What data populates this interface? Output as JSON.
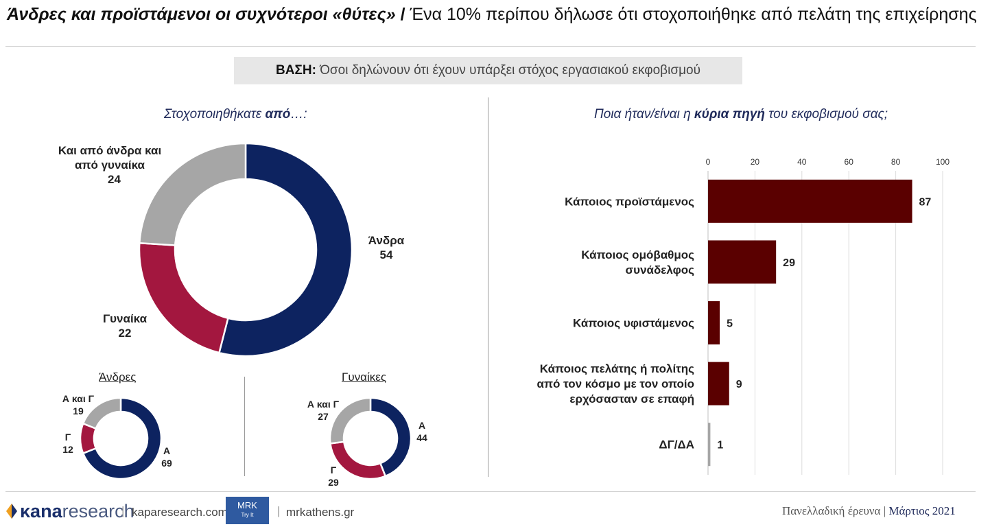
{
  "header": {
    "title_emphasis": "Άνδρες και προϊστάμενοι οι συχνότεροι «θύτες»",
    "title_separator": " / ",
    "title_rest": "Ένα 10% περίπου δήλωσε ότι στοχοποιήθηκε από πελάτη της επιχείρησης",
    "basis_label": "ΒΑΣΗ:",
    "basis_text": " Όσοι δηλώνουν ότι έχουν υπάρξει στόχος εργασιακού εκφοβισμού"
  },
  "left_panel": {
    "question_prefix": "Στοχοποιηθήκατε ",
    "question_emphasis": "από",
    "question_suffix": "…:",
    "men_title": "Άνδρες",
    "women_title": "Γυναίκες"
  },
  "right_panel": {
    "question_prefix": "Ποια ήταν/είναι η ",
    "question_emphasis": "κύρια πηγή",
    "question_suffix": " του εκφοβισμού σας;"
  },
  "chart_data": [
    {
      "type": "pie",
      "variant": "donut",
      "labels": [
        "Άνδρα",
        "Γυναίκα",
        "Και από άνδρα και από γυναίκα"
      ],
      "display_labels": [
        [
          "Άνδρα"
        ],
        [
          "Γυναίκα"
        ],
        [
          "Και από άνδρα και",
          "από γυναίκα"
        ]
      ],
      "values": [
        54,
        22,
        24
      ],
      "colors": [
        "#0d2360",
        "#a3173f",
        "#a6a6a6"
      ]
    },
    {
      "type": "pie",
      "variant": "donut",
      "labels": [
        "Α",
        "Γ",
        "Α και Γ"
      ],
      "values": [
        69,
        12,
        19
      ],
      "colors": [
        "#0d2360",
        "#a3173f",
        "#a6a6a6"
      ]
    },
    {
      "type": "pie",
      "variant": "donut",
      "labels": [
        "Α",
        "Γ",
        "Α και Γ"
      ],
      "values": [
        44,
        29,
        27
      ],
      "colors": [
        "#0d2360",
        "#a3173f",
        "#a6a6a6"
      ]
    },
    {
      "type": "bar",
      "orientation": "horizontal",
      "categories": [
        "Κάποιος προϊστάμενος",
        "Κάποιος ομόβαθμος συνάδελφος",
        "Κάποιος υφιστάμενος",
        "Κάποιος πελάτης ή πολίτης από τον κόσμο με τον οποίο ερχόσασταν σε επαφή",
        "ΔΓ/ΔΑ"
      ],
      "category_lines": [
        [
          "Κάποιος προϊστάμενος"
        ],
        [
          "Κάποιος ομόβαθμος",
          "συνάδελφος"
        ],
        [
          "Κάποιος υφιστάμενος"
        ],
        [
          "Κάποιος πελάτης ή πολίτης",
          "από τον κόσμο με τον οποίο",
          "ερχόσασταν σε επαφή"
        ],
        [
          "ΔΓ/ΔΑ"
        ]
      ],
      "values": [
        87,
        29,
        5,
        9,
        1
      ],
      "colors": [
        "#5a0000",
        "#5a0000",
        "#5a0000",
        "#5a0000",
        "#a6a6a6"
      ],
      "xlim": [
        0,
        100
      ],
      "xticks": [
        0,
        20,
        40,
        60,
        80,
        100
      ],
      "axis_position": "top",
      "grid": true
    }
  ],
  "footer": {
    "brand_kana": "κana",
    "brand_research": "research",
    "divider": "|",
    "site1": "kaparesearch.com",
    "mrk_logo": "MRK",
    "mrk_tagline": "Try It",
    "site2": "mrkathens.gr",
    "survey_label": "Πανελλαδική έρευνα",
    "survey_divider": " | ",
    "survey_date": "Μάρτιος 2021"
  },
  "colors": {
    "navy": "#0d2360",
    "crimson": "#a3173f",
    "grey": "#a6a6a6",
    "bar": "#5a0000",
    "accent_text": "#1f2a5a"
  }
}
